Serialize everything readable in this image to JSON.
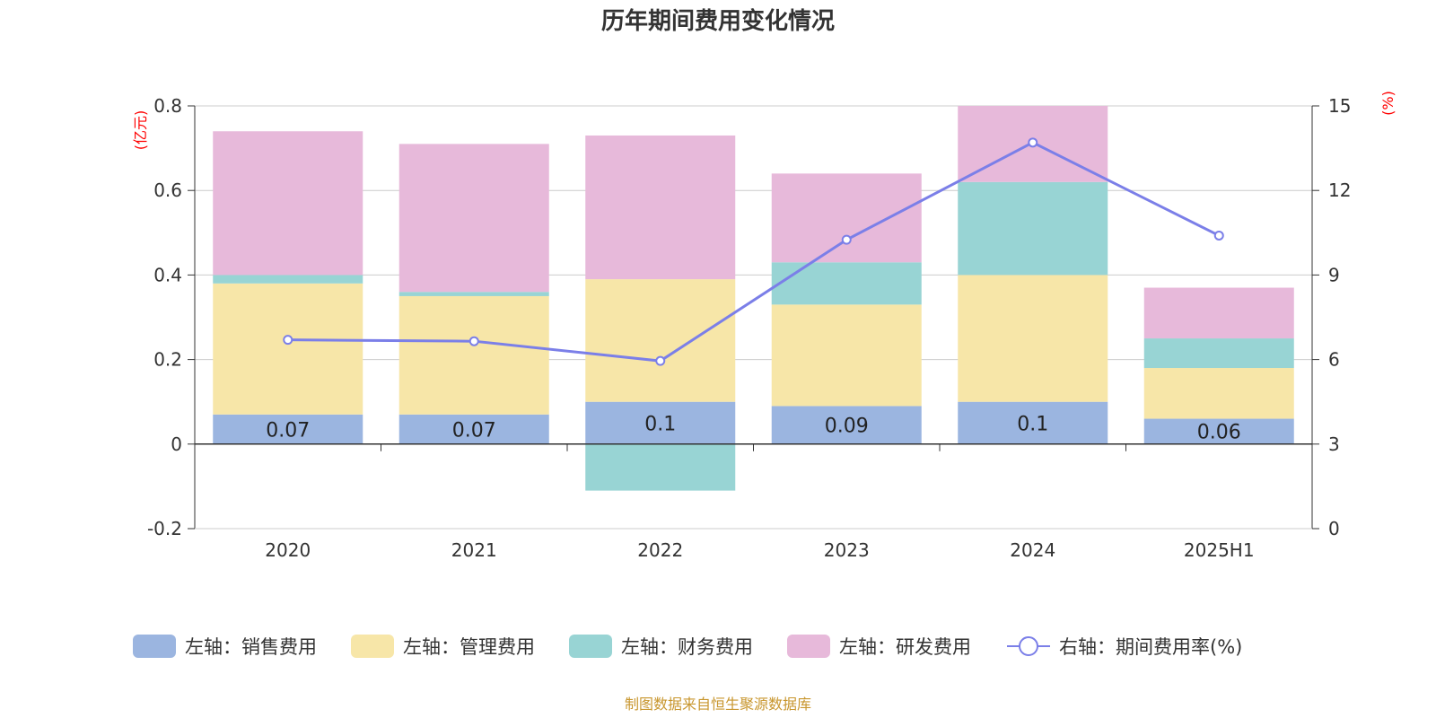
{
  "title": "历年期间费用变化情况",
  "source_note": "制图数据来自恒生聚源数据库",
  "chart_data": {
    "type": "bar",
    "stacked": true,
    "title": "历年期间费用变化情况",
    "categories": [
      "2020",
      "2021",
      "2022",
      "2023",
      "2024",
      "2025H1"
    ],
    "left_axis": {
      "unit": "(亿元)",
      "ylim": [
        -0.2,
        0.8
      ],
      "ticks": [
        "-0.2",
        "0",
        "0.2",
        "0.4",
        "0.6",
        "0.8"
      ]
    },
    "right_axis": {
      "unit": "(%)",
      "ylim": [
        0,
        15
      ],
      "ticks": [
        "0",
        "3",
        "6",
        "9",
        "12",
        "15"
      ]
    },
    "grid": true,
    "legend_position": "bottom",
    "series": [
      {
        "name": "左轴：销售费用",
        "axis": "left",
        "type": "bar",
        "color": "#9bb5e0",
        "values": [
          0.07,
          0.07,
          0.1,
          0.09,
          0.1,
          0.06
        ],
        "labels": [
          "0.07",
          "0.07",
          "0.1",
          "0.09",
          "0.1",
          "0.06"
        ]
      },
      {
        "name": "左轴：管理费用",
        "axis": "left",
        "type": "bar",
        "color": "#f7e6a8",
        "values": [
          0.31,
          0.28,
          0.29,
          0.24,
          0.3,
          0.12
        ]
      },
      {
        "name": "左轴：财务费用",
        "axis": "left",
        "type": "bar",
        "color": "#98d4d4",
        "values": [
          0.02,
          0.01,
          -0.11,
          0.1,
          0.22,
          0.07
        ]
      },
      {
        "name": "左轴：研发费用",
        "axis": "left",
        "type": "bar",
        "color": "#e7b9da",
        "values": [
          0.34,
          0.35,
          0.34,
          0.21,
          0.18,
          0.12
        ]
      },
      {
        "name": "右轴：期间费用率(%)",
        "axis": "right",
        "type": "line",
        "color": "#7b7fe8",
        "values": [
          6.7,
          6.65,
          5.95,
          10.25,
          13.7,
          10.4
        ]
      }
    ]
  }
}
